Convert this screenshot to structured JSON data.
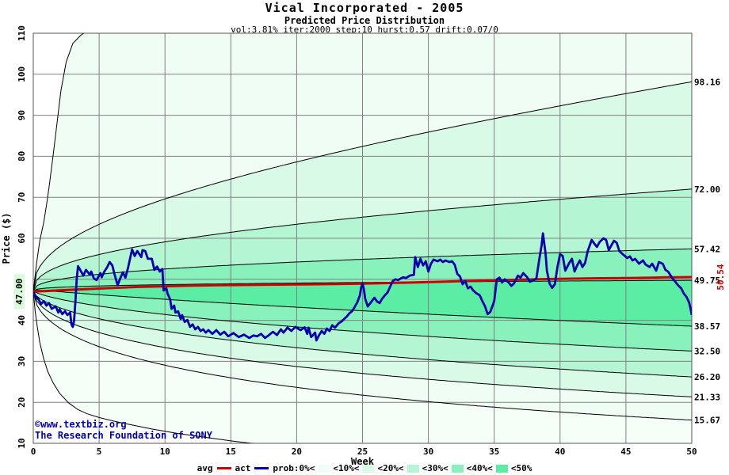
{
  "header": {
    "title": "Vical Incorporated - 2005",
    "subtitle": "Predicted Price Distribution",
    "params": "vol:3.81% iter:2000 step:10 hurst:0.57 drift:0.07/0"
  },
  "watermark": {
    "line1": "©www.textbiz.org",
    "line2": "The Research Foundation of SONY",
    "color": "#0000b0"
  },
  "chart_data": {
    "type": "line",
    "title": "Vical Incorporated - 2005",
    "subtitle": "Predicted Price Distribution",
    "xlabel": "Week",
    "ylabel": "Price ($)",
    "xlim": [
      0,
      50
    ],
    "ylim": [
      10,
      110
    ],
    "x_ticks": [
      0,
      5,
      10,
      15,
      20,
      25,
      30,
      35,
      40,
      45,
      50
    ],
    "y_grid": [
      10,
      20,
      30,
      40,
      50,
      60,
      70,
      80,
      90,
      100,
      110
    ],
    "y_tick_labels": [
      10,
      20,
      30,
      40,
      60,
      70,
      80,
      90,
      100,
      110
    ],
    "grid": true,
    "start_price": 47.0,
    "start_label": "47.00",
    "start_label_bg": "#d9fbda",
    "center_end": 49.75,
    "center_exp": 0.3,
    "hurst": 0.57,
    "band_colors": {
      "c0": "#f6fef8",
      "c1": "#effdf4",
      "c2": "#d9fae7",
      "c3": "#b4f6d3",
      "c4": "#88f1bc",
      "c5": "#5ceda4"
    },
    "fan_curves": [
      {
        "end": 98.16,
        "label": "98.16",
        "exp": 0.4
      },
      {
        "end": 72.0,
        "label": "72.00",
        "exp": 0.4
      },
      {
        "end": 57.42,
        "label": "57.42",
        "exp": 0.4
      },
      {
        "end": 49.75,
        "label": "49.75",
        "exp": 0.42
      },
      {
        "end": 38.57,
        "label": "38.57",
        "exp": 0.75
      },
      {
        "end": 32.5,
        "label": "32.50",
        "exp": 0.6
      },
      {
        "end": 26.2,
        "label": "26.20",
        "exp": 0.55
      },
      {
        "end": 21.33,
        "label": "21.33",
        "exp": 0.5
      },
      {
        "end": 15.67,
        "label": "15.67",
        "exp": 0.5
      }
    ],
    "bands": [
      [
        "u0",
        0,
        "c1"
      ],
      [
        0,
        1,
        "c2"
      ],
      [
        1,
        2,
        "c3"
      ],
      [
        2,
        3,
        "c4"
      ],
      [
        3,
        4,
        "c5"
      ],
      [
        4,
        5,
        "c4"
      ],
      [
        5,
        6,
        "c3"
      ],
      [
        6,
        7,
        "c2"
      ],
      [
        7,
        8,
        "c1"
      ],
      [
        8,
        "l0",
        "c0"
      ]
    ],
    "extreme_upper": [
      [
        0,
        47
      ],
      [
        0.25,
        54
      ],
      [
        0.5,
        59.5
      ],
      [
        0.8,
        64
      ],
      [
        1,
        68
      ],
      [
        1.2,
        72.5
      ],
      [
        1.5,
        80
      ],
      [
        1.8,
        88
      ],
      [
        2.1,
        96
      ],
      [
        2.5,
        103
      ],
      [
        3,
        107.5
      ],
      [
        3.6,
        109.5
      ],
      [
        4.3,
        111
      ],
      [
        5,
        113
      ],
      [
        7,
        122
      ],
      [
        10,
        134
      ],
      [
        15,
        150
      ],
      [
        25,
        175
      ],
      [
        50,
        240
      ]
    ],
    "extreme_lower": [
      [
        0,
        47
      ],
      [
        0.15,
        42
      ],
      [
        0.3,
        38.5
      ],
      [
        0.5,
        34.5
      ],
      [
        0.8,
        30.5
      ],
      [
        1.1,
        27.5
      ],
      [
        1.5,
        24.8
      ],
      [
        2,
        22.2
      ],
      [
        2.7,
        19.8
      ],
      [
        3.4,
        18.2
      ],
      [
        4.1,
        17.2
      ],
      [
        5,
        16.3
      ],
      [
        6,
        15.5
      ],
      [
        7,
        14.8
      ],
      [
        9,
        13.5
      ],
      [
        11,
        12.4
      ],
      [
        13,
        11.5
      ],
      [
        15,
        10.6
      ],
      [
        16.8,
        9.9
      ],
      [
        18,
        9.4
      ],
      [
        20,
        8.6
      ],
      [
        25,
        7
      ],
      [
        35,
        5
      ],
      [
        50,
        3
      ]
    ],
    "avg_color": "#cc0000",
    "avg_end_label": "50.54",
    "avg_series": [
      [
        0,
        47
      ],
      [
        1,
        47.15
      ],
      [
        2,
        47.3
      ],
      [
        3,
        47.45
      ],
      [
        4,
        47.6
      ],
      [
        5,
        47.75
      ],
      [
        6,
        47.9
      ],
      [
        8,
        48.15
      ],
      [
        10,
        48.3
      ],
      [
        12,
        48.45
      ],
      [
        14,
        48.55
      ],
      [
        17,
        48.65
      ],
      [
        20,
        48.75
      ],
      [
        23,
        48.85
      ],
      [
        25,
        48.95
      ],
      [
        27,
        49.1
      ],
      [
        29,
        49.25
      ],
      [
        31,
        49.4
      ],
      [
        33,
        49.6
      ],
      [
        35,
        49.75
      ],
      [
        37,
        49.9
      ],
      [
        39,
        50.05
      ],
      [
        41,
        50.15
      ],
      [
        43,
        50.25
      ],
      [
        45,
        50.3
      ],
      [
        46,
        50.35
      ],
      [
        47,
        50.4
      ],
      [
        48,
        50.5
      ],
      [
        49,
        50.5
      ],
      [
        50,
        50.54
      ]
    ],
    "act_color": "#0000ad",
    "act_series": [
      [
        0,
        47
      ],
      [
        0.2,
        45.7
      ],
      [
        0.4,
        45.1
      ],
      [
        0.6,
        44
      ],
      [
        0.8,
        44.7
      ],
      [
        1,
        43.6
      ],
      [
        1.2,
        44.2
      ],
      [
        1.4,
        42.8
      ],
      [
        1.7,
        43.4
      ],
      [
        1.9,
        41.9
      ],
      [
        2,
        42.7
      ],
      [
        2.2,
        41.5
      ],
      [
        2.4,
        42.2
      ],
      [
        2.6,
        41.3
      ],
      [
        2.8,
        41.9
      ],
      [
        2.9,
        39
      ],
      [
        3,
        38.4
      ],
      [
        3.1,
        39.9
      ],
      [
        3.2,
        44.7
      ],
      [
        3.3,
        50
      ],
      [
        3.4,
        53.2
      ],
      [
        3.6,
        52.1
      ],
      [
        3.8,
        50.9
      ],
      [
        4,
        52.3
      ],
      [
        4.3,
        51.1
      ],
      [
        4.4,
        51.9
      ],
      [
        4.6,
        50.2
      ],
      [
        4.8,
        49.8
      ],
      [
        5.1,
        51.5
      ],
      [
        5.2,
        50.5
      ],
      [
        5.4,
        51.9
      ],
      [
        5.6,
        52.9
      ],
      [
        5.8,
        54.2
      ],
      [
        6,
        53.4
      ],
      [
        6.2,
        50.9
      ],
      [
        6.4,
        48.6
      ],
      [
        6.6,
        50.2
      ],
      [
        6.8,
        51.7
      ],
      [
        7,
        50.4
      ],
      [
        7.2,
        52.9
      ],
      [
        7.5,
        57.3
      ],
      [
        7.7,
        55.7
      ],
      [
        7.9,
        56.9
      ],
      [
        8.2,
        55.4
      ],
      [
        8.3,
        57.1
      ],
      [
        8.5,
        56.9
      ],
      [
        8.7,
        55
      ],
      [
        9,
        55
      ],
      [
        9.2,
        52.3
      ],
      [
        9.4,
        53.1
      ],
      [
        9.6,
        51.9
      ],
      [
        9.8,
        52.5
      ],
      [
        9.9,
        47.3
      ],
      [
        10.1,
        47.8
      ],
      [
        10.2,
        46.5
      ],
      [
        10.4,
        45.1
      ],
      [
        10.5,
        42.8
      ],
      [
        10.7,
        43.6
      ],
      [
        10.8,
        41.9
      ],
      [
        11,
        42.2
      ],
      [
        11.2,
        40.3
      ],
      [
        11.3,
        41.3
      ],
      [
        11.5,
        39.6
      ],
      [
        11.7,
        40.1
      ],
      [
        11.9,
        38.4
      ],
      [
        12.1,
        39
      ],
      [
        12.3,
        37.8
      ],
      [
        12.5,
        38.4
      ],
      [
        12.7,
        37.4
      ],
      [
        12.9,
        37.8
      ],
      [
        13.1,
        37
      ],
      [
        13.3,
        37.6
      ],
      [
        13.6,
        36.7
      ],
      [
        13.9,
        37.6
      ],
      [
        14.2,
        36.5
      ],
      [
        14.5,
        37.2
      ],
      [
        14.8,
        36.1
      ],
      [
        15.2,
        36.9
      ],
      [
        15.6,
        35.9
      ],
      [
        16,
        36.5
      ],
      [
        16.4,
        35.7
      ],
      [
        16.7,
        36.3
      ],
      [
        17,
        36.1
      ],
      [
        17.3,
        36.7
      ],
      [
        17.6,
        35.7
      ],
      [
        17.9,
        36.4
      ],
      [
        18.2,
        37.2
      ],
      [
        18.5,
        36.4
      ],
      [
        18.8,
        37.8
      ],
      [
        19,
        37
      ],
      [
        19.3,
        38.2
      ],
      [
        19.6,
        37.4
      ],
      [
        19.9,
        38.4
      ],
      [
        20.3,
        37.6
      ],
      [
        20.6,
        38.3
      ],
      [
        20.8,
        36.7
      ],
      [
        20.9,
        38.2
      ],
      [
        21.1,
        35.9
      ],
      [
        21.4,
        37
      ],
      [
        21.5,
        35.1
      ],
      [
        21.7,
        36.4
      ],
      [
        21.9,
        37.4
      ],
      [
        22.1,
        36.7
      ],
      [
        22.3,
        38
      ],
      [
        22.5,
        37.4
      ],
      [
        22.7,
        38.8
      ],
      [
        22.9,
        38.2
      ],
      [
        23.2,
        39.3
      ],
      [
        23.4,
        39.7
      ],
      [
        23.6,
        40.3
      ],
      [
        23.8,
        40.9
      ],
      [
        24,
        41.7
      ],
      [
        24.2,
        42.2
      ],
      [
        24.4,
        43.2
      ],
      [
        24.6,
        44.4
      ],
      [
        24.8,
        46.1
      ],
      [
        24.9,
        48
      ],
      [
        25,
        49
      ],
      [
        25.1,
        47.6
      ],
      [
        25.2,
        45.3
      ],
      [
        25.4,
        43.4
      ],
      [
        25.6,
        44.2
      ],
      [
        25.8,
        45.1
      ],
      [
        25.9,
        45.5
      ],
      [
        26.1,
        44.6
      ],
      [
        26.3,
        44.2
      ],
      [
        26.5,
        45.3
      ],
      [
        26.7,
        46.1
      ],
      [
        26.9,
        46.8
      ],
      [
        27.1,
        48.2
      ],
      [
        27.3,
        49.6
      ],
      [
        27.5,
        50
      ],
      [
        27.7,
        49.8
      ],
      [
        27.9,
        50.2
      ],
      [
        28.1,
        50.5
      ],
      [
        28.3,
        50.3
      ],
      [
        28.6,
        50.9
      ],
      [
        28.9,
        51.1
      ],
      [
        29,
        55.4
      ],
      [
        29.2,
        53
      ],
      [
        29.4,
        55
      ],
      [
        29.6,
        53.4
      ],
      [
        29.8,
        54.4
      ],
      [
        30,
        51.9
      ],
      [
        30.2,
        53.8
      ],
      [
        30.4,
        54.8
      ],
      [
        30.7,
        54.4
      ],
      [
        30.9,
        54.8
      ],
      [
        31.1,
        54.2
      ],
      [
        31.3,
        54.6
      ],
      [
        31.6,
        54.2
      ],
      [
        31.8,
        54.4
      ],
      [
        32,
        53.6
      ],
      [
        32.2,
        51.3
      ],
      [
        32.4,
        50.7
      ],
      [
        32.6,
        48.8
      ],
      [
        32.8,
        49.6
      ],
      [
        33,
        47.8
      ],
      [
        33.2,
        48.2
      ],
      [
        33.4,
        47.3
      ],
      [
        33.6,
        46.7
      ],
      [
        33.9,
        46.1
      ],
      [
        34.1,
        44.7
      ],
      [
        34.3,
        43.4
      ],
      [
        34.5,
        41.5
      ],
      [
        34.7,
        42
      ],
      [
        35,
        44.7
      ],
      [
        35.2,
        50
      ],
      [
        35.4,
        50.4
      ],
      [
        35.6,
        49.2
      ],
      [
        35.8,
        50
      ],
      [
        36.1,
        49.2
      ],
      [
        36.3,
        48.4
      ],
      [
        36.5,
        49
      ],
      [
        36.8,
        50.9
      ],
      [
        37,
        50.4
      ],
      [
        37.2,
        51.5
      ],
      [
        37.5,
        50.5
      ],
      [
        37.7,
        49.4
      ],
      [
        38,
        49.8
      ],
      [
        38.2,
        50.2
      ],
      [
        38.4,
        54.4
      ],
      [
        38.6,
        58.3
      ],
      [
        38.7,
        61.2
      ],
      [
        38.9,
        56.3
      ],
      [
        39,
        52.1
      ],
      [
        39.2,
        49
      ],
      [
        39.4,
        47.9
      ],
      [
        39.6,
        48.8
      ],
      [
        39.8,
        53
      ],
      [
        40,
        56.1
      ],
      [
        40.2,
        55.7
      ],
      [
        40.4,
        52.1
      ],
      [
        40.7,
        54
      ],
      [
        40.9,
        55
      ],
      [
        41.1,
        51.9
      ],
      [
        41.3,
        53.4
      ],
      [
        41.5,
        54.6
      ],
      [
        41.7,
        53
      ],
      [
        41.9,
        54
      ],
      [
        42.1,
        56.9
      ],
      [
        42.4,
        59.6
      ],
      [
        42.6,
        58.7
      ],
      [
        42.8,
        57.9
      ],
      [
        43,
        59.1
      ],
      [
        43.3,
        60
      ],
      [
        43.5,
        59.6
      ],
      [
        43.7,
        57.1
      ],
      [
        43.9,
        58.3
      ],
      [
        44.1,
        59.4
      ],
      [
        44.3,
        58.9
      ],
      [
        44.5,
        56.9
      ],
      [
        44.8,
        56
      ],
      [
        45.1,
        55.2
      ],
      [
        45.3,
        55.6
      ],
      [
        45.5,
        54.6
      ],
      [
        45.7,
        55
      ],
      [
        46,
        53.8
      ],
      [
        46.3,
        54.6
      ],
      [
        46.5,
        53.6
      ],
      [
        46.8,
        53
      ],
      [
        47,
        53.8
      ],
      [
        47.3,
        52.1
      ],
      [
        47.5,
        54.2
      ],
      [
        47.8,
        53.8
      ],
      [
        48,
        52.3
      ],
      [
        48.2,
        51.9
      ],
      [
        48.5,
        50.4
      ],
      [
        48.7,
        49.6
      ],
      [
        49,
        48.4
      ],
      [
        49.2,
        47.8
      ],
      [
        49.4,
        46.5
      ],
      [
        49.6,
        45.7
      ],
      [
        49.8,
        44.3
      ],
      [
        49.9,
        43
      ],
      [
        50,
        41.3
      ]
    ],
    "legend": {
      "avg_label": "avg",
      "act_label": "act",
      "prob_label": "prob:0%<",
      "band_labels": [
        "<10%<",
        "<20%<",
        "<30%<",
        "<40%<",
        "<50%"
      ],
      "band_color_keys": [
        "c1",
        "c2",
        "c3",
        "c4",
        "c5"
      ]
    },
    "grid_color": "#808080",
    "border_color": "#555555",
    "curve_color": "#000000"
  }
}
